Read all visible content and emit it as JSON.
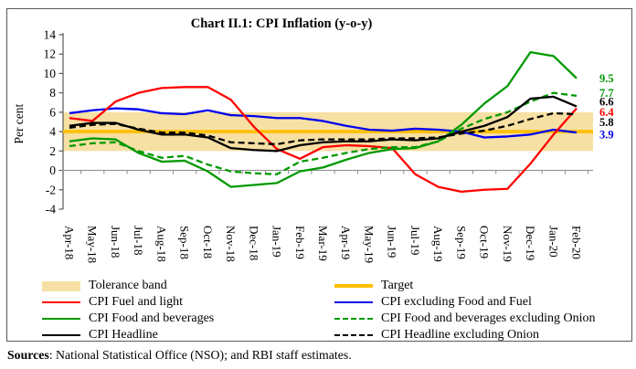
{
  "figure": {
    "title": "Chart II.1: CPI Inflation (y-o-y)",
    "ylabel": "Per cent",
    "sources_label": "Sources",
    "sources_text": ": National Statistical Office (NSO); and RBI staff estimates."
  },
  "chart_data": {
    "type": "line",
    "title": "Chart II.1: CPI Inflation (y-o-y)",
    "xlabel": "",
    "ylabel": "Per cent",
    "ylim": [
      -4,
      14
    ],
    "ytick_step": 2,
    "grid": false,
    "legend_position": "bottom, two columns",
    "categories": [
      "Apr-18",
      "May-18",
      "Jun-18",
      "Jul-18",
      "Aug-18",
      "Sep-18",
      "Oct-18",
      "Nov-18",
      "Dec-18",
      "Jan-19",
      "Feb-19",
      "Mar-19",
      "Apr-19",
      "May-19",
      "Jun-19",
      "Jul-19",
      "Aug-19",
      "Sep-19",
      "Oct-19",
      "Nov-19",
      "Dec-19",
      "Jan-20",
      "Feb-20"
    ],
    "tolerance_band": {
      "label": "Tolerance band",
      "from": 2,
      "to": 6,
      "color": "#F7E0A3"
    },
    "target": {
      "label": "Target",
      "value": 4,
      "color": "#FFC000"
    },
    "series": [
      {
        "name": "CPI excluding Food and Fuel",
        "color": "#0000EE",
        "dash": "solid",
        "end_label": "3.9",
        "values": [
          5.9,
          6.2,
          6.4,
          6.3,
          5.9,
          5.8,
          6.2,
          5.7,
          5.6,
          5.4,
          5.4,
          5.1,
          4.6,
          4.2,
          4.1,
          4.3,
          4.2,
          4.0,
          3.4,
          3.5,
          3.7,
          4.2,
          3.9
        ]
      },
      {
        "name": "CPI Fuel and light",
        "color": "#FF0000",
        "dash": "solid",
        "end_label": "6.4",
        "values": [
          5.4,
          5.1,
          7.1,
          8.0,
          8.5,
          8.6,
          8.6,
          7.3,
          4.5,
          2.2,
          1.2,
          2.4,
          2.6,
          2.5,
          2.3,
          -0.4,
          -1.7,
          -2.2,
          -2.0,
          -1.9,
          0.7,
          3.7,
          6.4
        ]
      },
      {
        "name": "CPI Food and beverages excluding Onion",
        "color": "#009900",
        "dash": "dashed",
        "end_label": "7.7",
        "values": [
          2.5,
          2.8,
          2.9,
          2.0,
          1.3,
          1.5,
          0.6,
          -0.1,
          -0.3,
          -0.4,
          0.9,
          1.3,
          1.8,
          2.2,
          2.4,
          2.4,
          3.0,
          4.3,
          5.3,
          6.0,
          7.1,
          8.0,
          7.7
        ]
      },
      {
        "name": "CPI Food and beverages",
        "color": "#009900",
        "dash": "solid",
        "end_label": "9.5",
        "values": [
          3.0,
          3.3,
          3.2,
          1.8,
          0.9,
          1.0,
          -0.1,
          -1.7,
          -1.5,
          -1.3,
          -0.1,
          0.3,
          1.1,
          1.8,
          2.2,
          2.3,
          3.0,
          4.7,
          6.9,
          8.7,
          12.2,
          11.8,
          9.5
        ]
      },
      {
        "name": "CPI Headline excluding Onion",
        "color": "#000000",
        "dash": "dashed",
        "end_label": "5.8",
        "values": [
          4.4,
          4.7,
          4.8,
          4.3,
          3.9,
          3.9,
          3.6,
          2.9,
          2.8,
          2.7,
          3.1,
          3.2,
          3.2,
          3.2,
          3.3,
          3.3,
          3.4,
          3.8,
          4.1,
          4.6,
          5.3,
          5.9,
          5.8
        ]
      },
      {
        "name": "CPI Headline",
        "color": "#000000",
        "dash": "solid",
        "end_label": "6.6",
        "values": [
          4.6,
          4.9,
          4.9,
          4.2,
          3.7,
          3.7,
          3.4,
          2.3,
          2.1,
          2.0,
          2.6,
          2.9,
          3.0,
          3.0,
          3.2,
          3.1,
          3.3,
          4.0,
          4.6,
          5.5,
          7.4,
          7.6,
          6.6
        ]
      }
    ]
  },
  "legend": {
    "left": [
      {
        "label": "Tolerance band",
        "swatch": "band",
        "color": "#F7E0A3"
      },
      {
        "label": "CPI Fuel and light",
        "swatch": "line",
        "color": "#FF0000"
      },
      {
        "label": "CPI Food and beverages",
        "swatch": "line",
        "color": "#009900"
      },
      {
        "label": "CPI Headline",
        "swatch": "line",
        "color": "#000000"
      }
    ],
    "right": [
      {
        "label": "Target",
        "swatch": "target",
        "color": "#FFC000"
      },
      {
        "label": "CPI excluding Food and Fuel",
        "swatch": "line",
        "color": "#0000EE"
      },
      {
        "label": "CPI Food and beverages excluding Onion",
        "swatch": "dashed",
        "color": "#009900"
      },
      {
        "label": "CPI Headline excluding Onion",
        "swatch": "dashed",
        "color": "#000000"
      }
    ]
  }
}
